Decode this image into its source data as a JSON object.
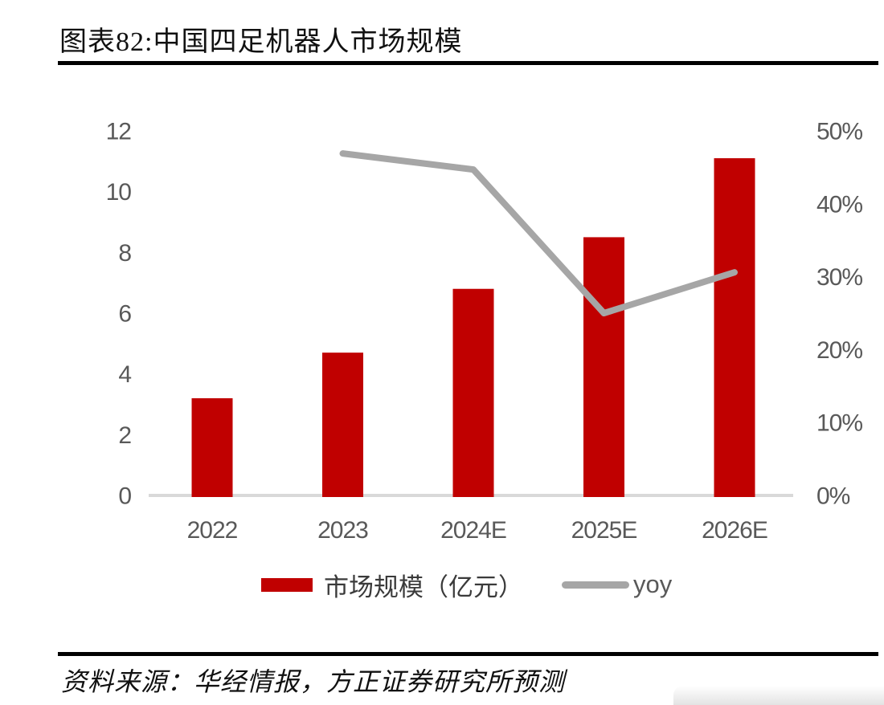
{
  "figure": {
    "title": "图表82:中国四足机器人市场规模",
    "source_note": "资料来源：华经情报，方正证券研究所预测"
  },
  "legend": {
    "bar_label": "市场规模（亿元）",
    "line_label": "yoy"
  },
  "colors": {
    "bar": "#c00000",
    "line": "#a6a6a6",
    "axis_text": "#595959",
    "axis_line": "#d9d9d9",
    "rule": "#000000"
  },
  "chart_data": {
    "type": "bar",
    "combo": "bar+line",
    "title": "中国四足机器人市场规模",
    "categories": [
      "2022",
      "2023",
      "2024E",
      "2025E",
      "2026E"
    ],
    "series": [
      {
        "name": "市场规模（亿元）",
        "type": "bar",
        "axis": "left",
        "color": "#c00000",
        "values": [
          3.2,
          4.7,
          6.8,
          8.5,
          11.1
        ]
      },
      {
        "name": "yoy",
        "type": "line",
        "axis": "right",
        "unit": "%",
        "color": "#a6a6a6",
        "values": [
          null,
          46.9,
          44.7,
          25.0,
          30.6
        ]
      }
    ],
    "left_axis": {
      "min": 0,
      "max": 12,
      "step": 2,
      "ticks": [
        0,
        2,
        4,
        6,
        8,
        10,
        12
      ]
    },
    "right_axis": {
      "min": 0,
      "max": 50,
      "step": 10,
      "ticks": [
        "0%",
        "10%",
        "20%",
        "30%",
        "40%",
        "50%"
      ]
    },
    "grid": false,
    "legend_position": "bottom"
  }
}
